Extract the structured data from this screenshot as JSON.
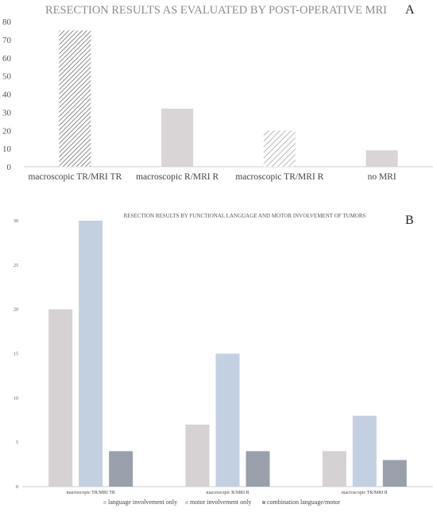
{
  "chart_data": [
    {
      "panel": "A",
      "type": "bar",
      "title": "RESECTION RESULTS AS EVALUATED BY POST-OPERATIVE MRI",
      "categories": [
        "macroscopic TR/MRI TR",
        "macroscopic R/MRI R",
        "macroscopic TR/MRI R",
        "no MRI"
      ],
      "values": [
        75,
        32,
        20,
        9
      ],
      "bar_styles": [
        "dense-hatch",
        "solid",
        "light-hatch",
        "solid"
      ],
      "bar_color": "#d9d4d6",
      "hatch_color": "#8a8a8a",
      "ylim": [
        0,
        80
      ],
      "yticks": [
        "0",
        "10",
        "20",
        "30",
        "40",
        "50",
        "60",
        "70",
        "80"
      ],
      "grid": false,
      "legend": "none"
    },
    {
      "panel": "B",
      "type": "bar",
      "title": "RESECTION RESULTS BY FUNCTIONAL LANGUAGE AND MOTOR INVOLVEMENT OF TUMORS",
      "categories": [
        "macroscopic TR/MRI TR",
        "macroscopic R/MRI R",
        "macroscopic TR/MRI R"
      ],
      "series": [
        {
          "name": "language involvement only",
          "values": [
            20,
            7,
            4
          ],
          "color": "#d6d1d3"
        },
        {
          "name": "motor involvement only",
          "values": [
            30,
            15,
            8
          ],
          "color": "#c3d0e2"
        },
        {
          "name": "combination language/motor",
          "values": [
            4,
            4,
            3
          ],
          "color": "#9aa0ab"
        }
      ],
      "ylim": [
        0,
        30
      ],
      "yticks": [
        "0",
        "5",
        "10",
        "15",
        "20",
        "25",
        "30"
      ],
      "grid": false,
      "legend": "bottom"
    }
  ]
}
